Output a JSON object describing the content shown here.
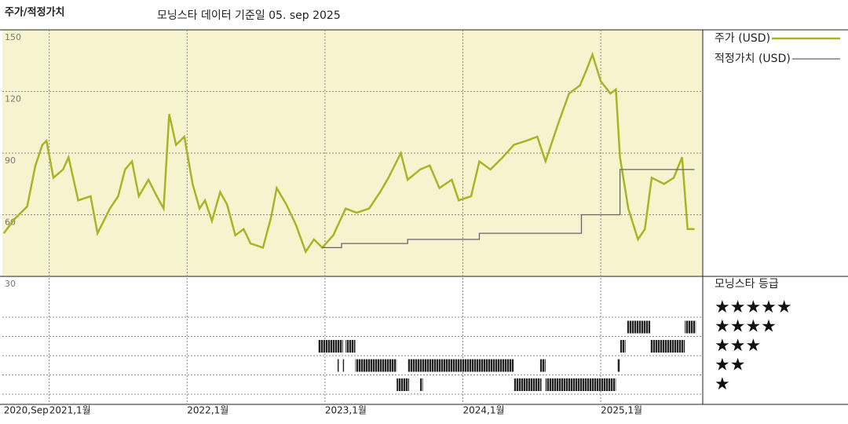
{
  "chart_data": {
    "type": "line",
    "title": "주가/적정가치",
    "subtitle": "모닝스타 데이터 기준일 05. sep 2025",
    "xlim": [
      2020.66,
      2025.74
    ],
    "xticks": [
      {
        "value": 2020.67,
        "label": "2020,Sep"
      },
      {
        "value": 2021,
        "label": "2021,1월"
      },
      {
        "value": 2022,
        "label": "2022,1월"
      },
      {
        "value": 2023,
        "label": "2023,1월"
      },
      {
        "value": 2024,
        "label": "2024,1월"
      },
      {
        "value": 2025,
        "label": "2025,1월"
      }
    ],
    "ylim": [
      30,
      150
    ],
    "yticks": [
      30,
      60,
      90,
      120,
      150
    ],
    "grid": true,
    "series": [
      {
        "name": "주가 (USD)",
        "color": "#a8b424",
        "x": [
          2020.67,
          2020.75,
          2020.84,
          2020.9,
          2020.95,
          2020.98,
          2021.03,
          2021.1,
          2021.14,
          2021.21,
          2021.3,
          2021.35,
          2021.44,
          2021.5,
          2021.55,
          2021.6,
          2021.65,
          2021.72,
          2021.78,
          2021.83,
          2021.87,
          2021.92,
          2021.98,
          2022.04,
          2022.09,
          2022.13,
          2022.18,
          2022.24,
          2022.29,
          2022.35,
          2022.41,
          2022.46,
          2022.55,
          2022.61,
          2022.65,
          2022.72,
          2022.79,
          2022.86,
          2022.92,
          2022.98,
          2023.06,
          2023.15,
          2023.23,
          2023.32,
          2023.4,
          2023.46,
          2023.55,
          2023.6,
          2023.69,
          2023.76,
          2023.83,
          2023.92,
          2023.97,
          2024.06,
          2024.12,
          2024.2,
          2024.29,
          2024.37,
          2024.46,
          2024.54,
          2024.6,
          2024.69,
          2024.77,
          2024.85,
          2024.9,
          2024.94,
          2025.0,
          2025.07,
          2025.11,
          2025.14,
          2025.2,
          2025.27,
          2025.32,
          2025.37,
          2025.46,
          2025.53,
          2025.59,
          2025.63,
          2025.68
        ],
        "values": [
          51,
          58,
          64,
          84,
          94,
          96,
          78,
          82,
          88,
          67,
          69,
          51,
          63,
          69,
          82,
          86,
          69,
          77,
          69,
          63,
          109,
          94,
          98,
          75,
          63,
          67,
          57,
          71,
          65,
          50,
          53,
          46,
          44,
          59,
          73,
          65,
          55,
          42,
          48,
          44,
          50,
          63,
          61,
          63,
          71,
          78,
          90,
          77,
          82,
          84,
          73,
          77,
          67,
          69,
          86,
          82,
          88,
          94,
          96,
          98,
          86,
          104,
          119,
          123,
          131,
          138,
          125,
          119,
          121,
          88,
          63,
          48,
          53,
          78,
          75,
          78,
          88,
          53,
          53
        ]
      },
      {
        "name": "적정가치 (USD)",
        "color": "#666666",
        "x": [
          2022.98,
          2023.12,
          2023.12,
          2023.6,
          2023.6,
          2024.12,
          2024.12,
          2024.86,
          2024.86,
          2025.14,
          2025.14,
          2025.68
        ],
        "values": [
          44,
          44,
          46,
          46,
          48,
          48,
          51,
          51,
          60,
          60,
          82,
          82
        ]
      }
    ],
    "rating_panel": {
      "title": "모닝스타 등급",
      "levels": [
        {
          "label": "★★★★★",
          "periods": []
        },
        {
          "label": "★★★★",
          "periods": [
            [
              2025.19,
              2025.36
            ],
            [
              2025.61,
              2025.69
            ]
          ]
        },
        {
          "label": "★★★",
          "periods": [
            [
              2022.95,
              2023.13
            ],
            [
              2023.15,
              2023.22
            ],
            [
              2025.14,
              2025.18
            ],
            [
              2025.36,
              2025.61
            ]
          ]
        },
        {
          "label": "★★",
          "periods": [
            [
              2023.09,
              2023.1
            ],
            [
              2023.13,
              2023.14
            ],
            [
              2023.22,
              2023.52
            ],
            [
              2023.6,
              2024.37
            ],
            [
              2024.56,
              2024.6
            ],
            [
              2025.12,
              2025.14
            ]
          ]
        },
        {
          "label": "★",
          "periods": [
            [
              2023.52,
              2023.61
            ],
            [
              2023.69,
              2023.71
            ],
            [
              2024.37,
              2024.57
            ],
            [
              2024.6,
              2025.11
            ]
          ]
        }
      ]
    }
  }
}
